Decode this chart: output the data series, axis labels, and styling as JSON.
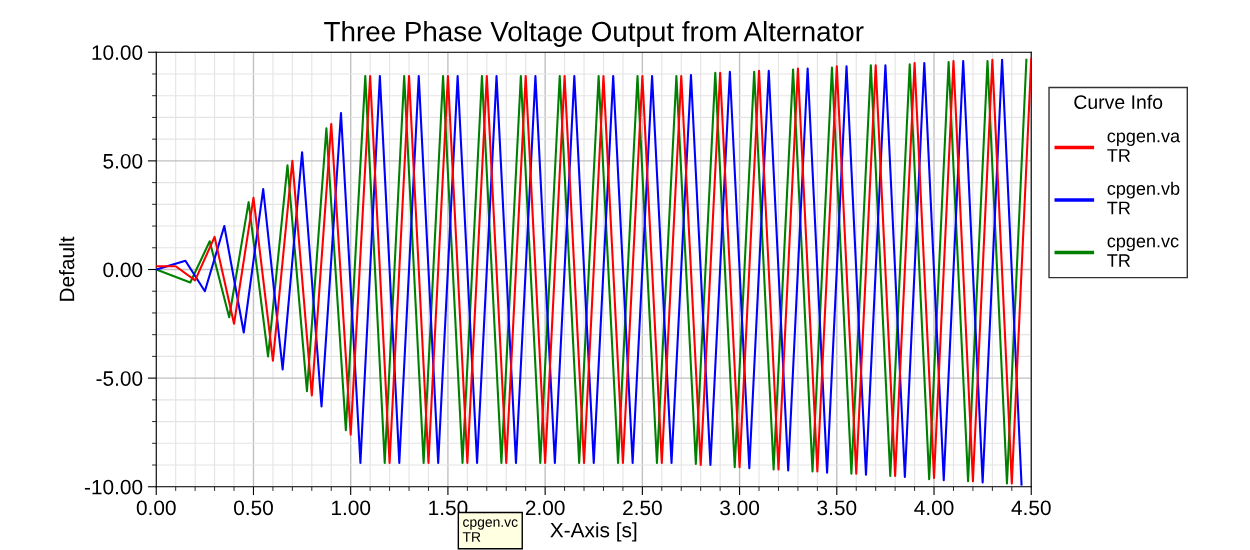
{
  "chart_data": {
    "type": "line",
    "title": "Three Phase Voltage Output from Alternator",
    "xlabel": "X-Axis [s]",
    "ylabel": "Default",
    "legend_title": "Curve Info",
    "legend": "right",
    "grid": true,
    "marker": "none",
    "line_style": "solid",
    "xlim": [
      0,
      4.5
    ],
    "ylim": [
      -10,
      10
    ],
    "xticks": [
      {
        "value": 0,
        "label": "0.00"
      },
      {
        "value": 0.5,
        "label": "0.50"
      },
      {
        "value": 1,
        "label": "1.00"
      },
      {
        "value": 1.5,
        "label": "1.50"
      },
      {
        "value": 2,
        "label": "2.00"
      },
      {
        "value": 2.5,
        "label": "2.50"
      },
      {
        "value": 3,
        "label": "3.00"
      },
      {
        "value": 3.5,
        "label": "3.50"
      },
      {
        "value": 4,
        "label": "4.00"
      },
      {
        "value": 4.5,
        "label": "4.50"
      }
    ],
    "yticks": [
      {
        "value": -10,
        "label": "-10.00"
      },
      {
        "value": -5,
        "label": "-5.00"
      },
      {
        "value": 0,
        "label": "0.00"
      },
      {
        "value": 5,
        "label": "5.00"
      },
      {
        "value": 10,
        "label": "10.00"
      }
    ],
    "annotations": [
      "cpgen.vc\nTR"
    ],
    "series": [
      {
        "name": "cpgen.va\nTR",
        "color": "#ff0000",
        "x": [
          0,
          0.1,
          0.2,
          0.3,
          0.4,
          0.5,
          0.6,
          0.7,
          0.8,
          0.9,
          1.0,
          1.1,
          1.2,
          1.3,
          1.4,
          1.5,
          1.6,
          1.7,
          1.8,
          1.9,
          2.0,
          2.1,
          2.2,
          2.3,
          2.4,
          2.5,
          2.6,
          2.7,
          2.8,
          2.9,
          3.0,
          3.1,
          3.2,
          3.3,
          3.4,
          3.5,
          3.6,
          3.7,
          3.8,
          3.9,
          4.0,
          4.1,
          4.2,
          4.3,
          4.4,
          4.5
        ],
        "values": [
          0.15,
          0.15,
          -0.5,
          1.5,
          -2.5,
          3.3,
          -4.2,
          5.0,
          -5.8,
          6.7,
          -7.6,
          8.9,
          -8.9,
          8.9,
          -8.9,
          8.9,
          -8.9,
          8.9,
          -8.9,
          8.9,
          -8.9,
          8.9,
          -8.9,
          8.9,
          -8.9,
          8.9,
          -8.9,
          8.9,
          -9.0,
          9.05,
          -9.1,
          9.15,
          -9.2,
          9.25,
          -9.3,
          9.35,
          -9.4,
          9.4,
          -9.5,
          9.5,
          -9.6,
          9.6,
          -9.75,
          9.65,
          -9.85,
          9.7
        ]
      },
      {
        "name": "cpgen.vb\nTR",
        "color": "#0000ff",
        "x": [
          0,
          0.15,
          0.25,
          0.35,
          0.45,
          0.55,
          0.65,
          0.75,
          0.85,
          0.95,
          1.05,
          1.15,
          1.25,
          1.35,
          1.45,
          1.55,
          1.65,
          1.75,
          1.85,
          1.95,
          2.05,
          2.15,
          2.25,
          2.35,
          2.45,
          2.55,
          2.65,
          2.75,
          2.85,
          2.95,
          3.05,
          3.15,
          3.25,
          3.35,
          3.45,
          3.55,
          3.65,
          3.75,
          3.85,
          3.95,
          4.05,
          4.15,
          4.25,
          4.35,
          4.45
        ],
        "values": [
          0,
          0.4,
          -1.0,
          2.0,
          -2.9,
          3.7,
          -4.6,
          5.4,
          -6.3,
          7.2,
          -8.9,
          8.9,
          -8.9,
          8.9,
          -8.9,
          8.9,
          -8.9,
          8.9,
          -8.9,
          8.9,
          -8.9,
          8.9,
          -8.9,
          8.9,
          -8.9,
          8.9,
          -8.9,
          8.95,
          -9.0,
          9.1,
          -9.15,
          9.15,
          -9.25,
          9.25,
          -9.35,
          9.35,
          -9.45,
          9.4,
          -9.55,
          9.5,
          -9.7,
          9.6,
          -9.8,
          9.65,
          -9.9
        ]
      },
      {
        "name": "cpgen.vc\nTR",
        "color": "#008000",
        "x": [
          0,
          0.175,
          0.275,
          0.375,
          0.475,
          0.575,
          0.675,
          0.775,
          0.875,
          0.975,
          1.075,
          1.175,
          1.275,
          1.375,
          1.475,
          1.575,
          1.675,
          1.775,
          1.875,
          1.975,
          2.075,
          2.175,
          2.275,
          2.375,
          2.475,
          2.575,
          2.675,
          2.775,
          2.875,
          2.975,
          3.075,
          3.175,
          3.275,
          3.375,
          3.475,
          3.575,
          3.675,
          3.775,
          3.875,
          3.975,
          4.075,
          4.175,
          4.275,
          4.375,
          4.475
        ],
        "values": [
          0,
          -0.6,
          1.3,
          -2.2,
          3.1,
          -4.0,
          4.8,
          -5.6,
          6.5,
          -7.4,
          8.9,
          -8.9,
          8.9,
          -8.9,
          8.9,
          -8.9,
          8.9,
          -8.9,
          8.9,
          -8.9,
          8.9,
          -8.9,
          8.9,
          -8.9,
          8.9,
          -8.9,
          8.9,
          -8.95,
          9.05,
          -9.1,
          9.1,
          -9.2,
          9.2,
          -9.3,
          9.3,
          -9.4,
          9.4,
          -9.5,
          9.45,
          -9.65,
          9.55,
          -9.75,
          9.6,
          -9.85,
          9.65
        ]
      }
    ]
  }
}
